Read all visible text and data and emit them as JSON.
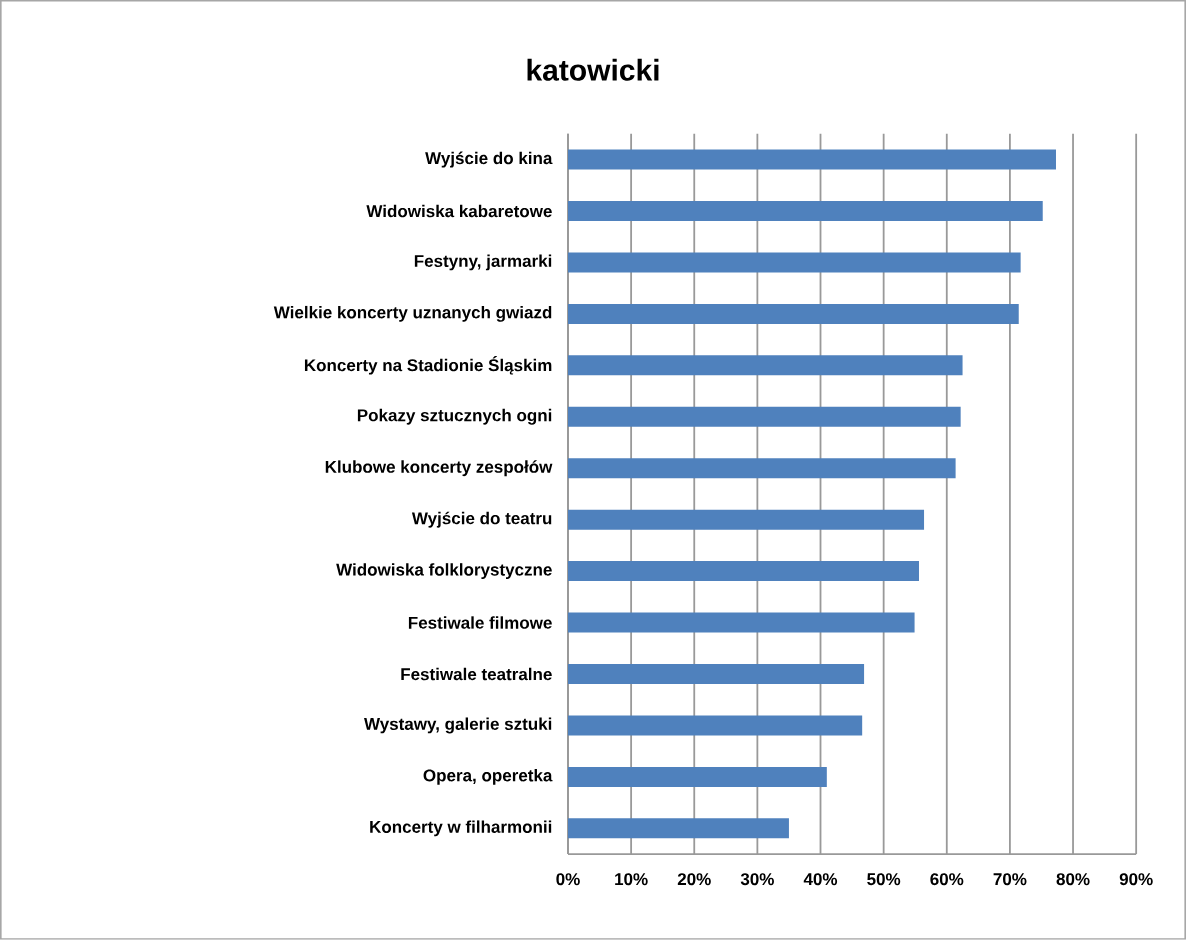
{
  "chart_data": {
    "type": "bar",
    "orientation": "horizontal",
    "title": "katowicki",
    "categories": [
      "Wyjście do kina",
      "Widowiska kabaretowe",
      "Festyny, jarmarki",
      "Wielkie koncerty uznanych gwiazd",
      "Koncerty na Stadionie Śląskim",
      "Pokazy sztucznych ogni",
      "Klubowe koncerty zespołów",
      "Wyjście do teatru",
      "Widowiska folklorystyczne",
      "Festiwale filmowe",
      "Festiwale teatralne",
      "Wystawy, galerie sztuki",
      "Opera, operetka",
      "Koncerty w filharmonii"
    ],
    "values": [
      77.3,
      75.2,
      71.7,
      71.4,
      62.5,
      62.2,
      61.4,
      56.4,
      55.6,
      54.9,
      46.9,
      46.6,
      41.0,
      35.0
    ],
    "color": "#4f81bd",
    "xlim": [
      0,
      90
    ],
    "xticks": [
      {
        "value": 0,
        "label": "0%"
      },
      {
        "value": 10,
        "label": "10%"
      },
      {
        "value": 20,
        "label": "20%"
      },
      {
        "value": 30,
        "label": "30%"
      },
      {
        "value": 40,
        "label": "40%"
      },
      {
        "value": 50,
        "label": "50%"
      },
      {
        "value": 60,
        "label": "60%"
      },
      {
        "value": 70,
        "label": "70%"
      },
      {
        "value": 80,
        "label": "80%"
      },
      {
        "value": 90,
        "label": "90%"
      }
    ],
    "grid": "x"
  }
}
